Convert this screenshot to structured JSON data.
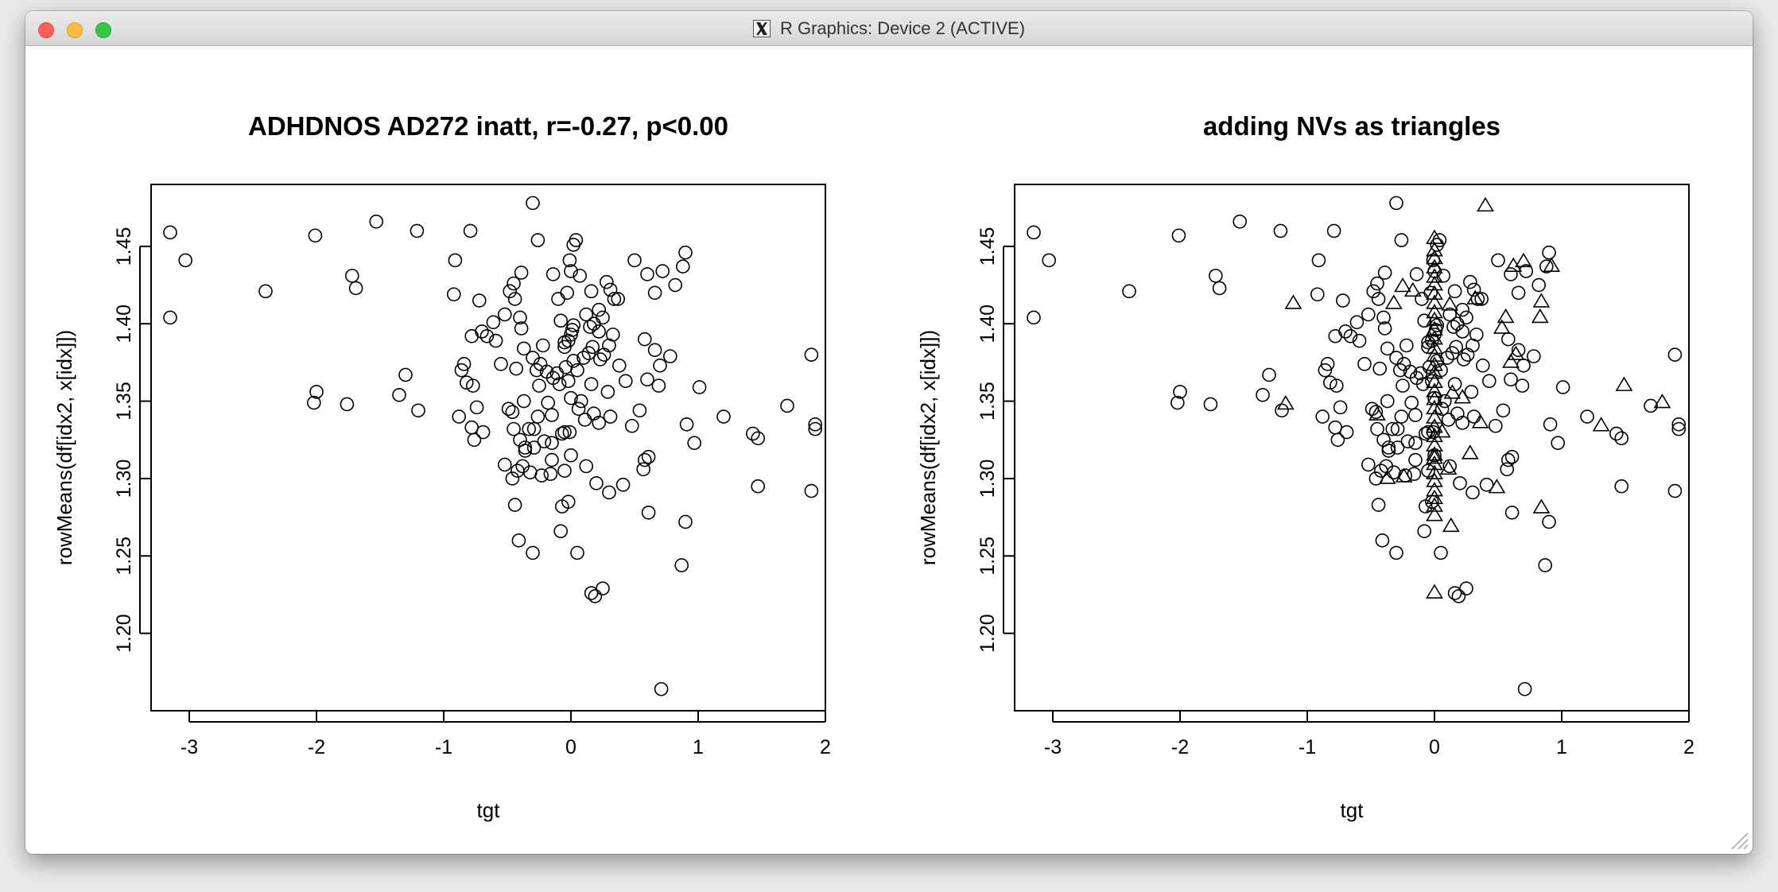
{
  "window": {
    "title": "R Graphics: Device 2 (ACTIVE)"
  },
  "chart_data": [
    {
      "type": "scatter",
      "title": "ADHDNOS AD272 inatt, r=-0.27, p<0.00",
      "xlabel": "tgt",
      "ylabel": "rowMeans(df[idx2, x[idx]])",
      "xlim": [
        -3.3,
        2.0
      ],
      "ylim": [
        1.15,
        1.49
      ],
      "xticks": [
        -3,
        -2,
        -1,
        0,
        1,
        2
      ],
      "yticks": [
        1.2,
        1.25,
        1.3,
        1.35,
        1.4,
        1.45
      ],
      "xtick_labels": [
        "-3",
        "-2",
        "-1",
        "0",
        "1",
        "2"
      ],
      "ytick_labels": [
        "1.20",
        "1.25",
        "1.30",
        "1.35",
        "1.40",
        "1.45"
      ],
      "grid": false,
      "legend": "none",
      "series": [
        {
          "marker": "circle",
          "points": [
            [
              -3.15,
              1.459
            ],
            [
              -3.03,
              1.441
            ],
            [
              -3.15,
              1.404
            ],
            [
              -2.4,
              1.421
            ],
            [
              -2.01,
              1.457
            ],
            [
              -1.72,
              1.431
            ],
            [
              -1.69,
              1.423
            ],
            [
              -1.53,
              1.466
            ],
            [
              -1.21,
              1.46
            ],
            [
              -1.3,
              1.367
            ],
            [
              -1.35,
              1.354
            ],
            [
              -1.2,
              1.344
            ],
            [
              -2.02,
              1.349
            ],
            [
              -2.0,
              1.356
            ],
            [
              -1.76,
              1.348
            ],
            [
              -0.79,
              1.46
            ],
            [
              -0.92,
              1.419
            ],
            [
              -0.91,
              1.441
            ],
            [
              -0.72,
              1.415
            ],
            [
              -0.61,
              1.401
            ],
            [
              -0.59,
              1.389
            ],
            [
              -0.52,
              1.406
            ],
            [
              -0.48,
              1.421
            ],
            [
              -0.45,
              1.426
            ],
            [
              -0.44,
              1.416
            ],
            [
              -0.4,
              1.404
            ],
            [
              -0.39,
              1.397
            ],
            [
              -0.37,
              1.384
            ],
            [
              -0.39,
              1.433
            ],
            [
              -0.3,
              1.478
            ],
            [
              -0.26,
              1.454
            ],
            [
              -0.14,
              1.432
            ],
            [
              -0.1,
              1.416
            ],
            [
              -0.08,
              1.402
            ],
            [
              -0.05,
              1.388
            ],
            [
              -0.03,
              1.42
            ],
            [
              -0.01,
              1.441
            ],
            [
              0.0,
              1.434
            ],
            [
              0.02,
              1.451
            ],
            [
              0.04,
              1.454
            ],
            [
              0.01,
              1.396
            ],
            [
              0.02,
              1.376
            ],
            [
              0.07,
              1.431
            ],
            [
              0.12,
              1.406
            ],
            [
              0.16,
              1.421
            ],
            [
              0.18,
              1.4
            ],
            [
              0.22,
              1.409
            ],
            [
              0.25,
              1.404
            ],
            [
              0.28,
              1.427
            ],
            [
              0.31,
              1.422
            ],
            [
              0.34,
              1.416
            ],
            [
              0.37,
              1.416
            ],
            [
              0.5,
              1.441
            ],
            [
              0.6,
              1.432
            ],
            [
              0.66,
              1.42
            ],
            [
              0.72,
              1.434
            ],
            [
              0.82,
              1.425
            ],
            [
              0.88,
              1.437
            ],
            [
              0.9,
              1.446
            ],
            [
              0.58,
              1.39
            ],
            [
              0.66,
              1.383
            ],
            [
              0.7,
              1.373
            ],
            [
              0.78,
              1.379
            ],
            [
              0.38,
              1.373
            ],
            [
              0.43,
              1.363
            ],
            [
              0.6,
              1.364
            ],
            [
              0.69,
              1.36
            ],
            [
              1.01,
              1.359
            ],
            [
              1.2,
              1.34
            ],
            [
              1.43,
              1.329
            ],
            [
              1.47,
              1.326
            ],
            [
              1.7,
              1.347
            ],
            [
              1.89,
              1.38
            ],
            [
              1.92,
              1.335
            ],
            [
              1.92,
              1.332
            ],
            [
              1.47,
              1.295
            ],
            [
              1.89,
              1.292
            ],
            [
              0.97,
              1.323
            ],
            [
              0.91,
              1.335
            ],
            [
              0.9,
              1.272
            ],
            [
              0.87,
              1.244
            ],
            [
              0.71,
              1.164
            ],
            [
              0.61,
              1.314
            ],
            [
              0.58,
              1.312
            ],
            [
              0.57,
              1.306
            ],
            [
              0.61,
              1.278
            ],
            [
              0.48,
              1.334
            ],
            [
              0.54,
              1.344
            ],
            [
              0.41,
              1.296
            ],
            [
              0.3,
              1.291
            ],
            [
              0.31,
              1.34
            ],
            [
              0.18,
              1.342
            ],
            [
              0.16,
              1.361
            ],
            [
              0.12,
              1.308
            ],
            [
              0.11,
              1.338
            ],
            [
              0.2,
              1.297
            ],
            [
              0.25,
              1.229
            ],
            [
              0.16,
              1.226
            ],
            [
              0.19,
              1.224
            ],
            [
              0.05,
              1.252
            ],
            [
              -0.08,
              1.266
            ],
            [
              -0.07,
              1.282
            ],
            [
              -0.02,
              1.285
            ],
            [
              -0.3,
              1.252
            ],
            [
              -0.41,
              1.26
            ],
            [
              -0.44,
              1.283
            ],
            [
              -0.46,
              1.3
            ],
            [
              -0.42,
              1.305
            ],
            [
              -0.38,
              1.308
            ],
            [
              -0.32,
              1.304
            ],
            [
              -0.23,
              1.302
            ],
            [
              -0.16,
              1.303
            ],
            [
              -0.15,
              1.312
            ],
            [
              -0.05,
              1.305
            ],
            [
              -0.07,
              1.329
            ],
            [
              -0.05,
              1.33
            ],
            [
              -0.01,
              1.33
            ],
            [
              0.0,
              1.315
            ],
            [
              -0.4,
              1.325
            ],
            [
              -0.36,
              1.32
            ],
            [
              -0.33,
              1.332
            ],
            [
              -0.29,
              1.332
            ],
            [
              -0.29,
              1.32
            ],
            [
              -0.21,
              1.324
            ],
            [
              -0.15,
              1.323
            ],
            [
              -0.15,
              1.341
            ],
            [
              -0.18,
              1.349
            ],
            [
              -0.37,
              1.35
            ],
            [
              -0.49,
              1.345
            ],
            [
              -0.46,
              1.343
            ],
            [
              -0.52,
              1.309
            ],
            [
              -0.7,
              1.395
            ],
            [
              -0.66,
              1.392
            ],
            [
              -0.78,
              1.392
            ],
            [
              -0.84,
              1.374
            ],
            [
              -0.86,
              1.37
            ],
            [
              -0.82,
              1.362
            ],
            [
              -0.77,
              1.36
            ],
            [
              -0.74,
              1.346
            ],
            [
              -0.78,
              1.333
            ],
            [
              -0.76,
              1.325
            ],
            [
              -0.69,
              1.33
            ],
            [
              -0.88,
              1.34
            ],
            [
              -0.3,
              1.378
            ],
            [
              -0.24,
              1.374
            ],
            [
              -0.22,
              1.386
            ],
            [
              -0.19,
              1.369
            ],
            [
              -0.14,
              1.365
            ],
            [
              -0.09,
              1.361
            ],
            [
              -0.11,
              1.368
            ],
            [
              -0.04,
              1.372
            ],
            [
              -0.02,
              1.363
            ],
            [
              0.05,
              1.37
            ],
            [
              0.1,
              1.378
            ],
            [
              0.14,
              1.381
            ],
            [
              0.17,
              1.385
            ],
            [
              0.23,
              1.377
            ],
            [
              0.26,
              1.38
            ],
            [
              0.3,
              1.386
            ],
            [
              0.33,
              1.393
            ],
            [
              0.22,
              1.395
            ],
            [
              0.15,
              1.398
            ],
            [
              0.02,
              1.399
            ],
            [
              0.0,
              1.393
            ],
            [
              -0.02,
              1.389
            ],
            [
              -0.05,
              1.385
            ],
            [
              -0.27,
              1.37
            ],
            [
              -0.25,
              1.36
            ],
            [
              0.0,
              1.352
            ],
            [
              0.06,
              1.345
            ],
            [
              0.08,
              1.35
            ],
            [
              0.29,
              1.356
            ],
            [
              0.22,
              1.336
            ],
            [
              -0.26,
              1.34
            ],
            [
              -0.36,
              1.318
            ],
            [
              -0.45,
              1.332
            ],
            [
              -0.55,
              1.374
            ],
            [
              -0.43,
              1.371
            ]
          ]
        }
      ]
    },
    {
      "type": "scatter",
      "title": "adding NVs as triangles",
      "xlabel": "tgt",
      "ylabel": "rowMeans(df[idx2, x[idx]])",
      "xlim": [
        -3.3,
        2.0
      ],
      "ylim": [
        1.15,
        1.49
      ],
      "xticks": [
        -3,
        -2,
        -1,
        0,
        1,
        2
      ],
      "yticks": [
        1.2,
        1.25,
        1.3,
        1.35,
        1.4,
        1.45
      ],
      "xtick_labels": [
        "-3",
        "-2",
        "-1",
        "0",
        "1",
        "2"
      ],
      "ytick_labels": [
        "1.20",
        "1.25",
        "1.30",
        "1.35",
        "1.40",
        "1.45"
      ],
      "grid": false,
      "legend": "none",
      "series": [
        {
          "marker": "circle",
          "same_points_as_left_panel": true
        },
        {
          "marker": "triangle",
          "points": [
            [
              0.4,
              1.476
            ],
            [
              0.0,
              1.455
            ],
            [
              -1.11,
              1.413
            ],
            [
              -0.32,
              1.413
            ],
            [
              -0.25,
              1.424
            ],
            [
              -0.17,
              1.421
            ],
            [
              0.12,
              1.412
            ],
            [
              0.32,
              1.416
            ],
            [
              0.56,
              1.404
            ],
            [
              0.62,
              1.437
            ],
            [
              0.7,
              1.44
            ],
            [
              0.84,
              1.414
            ],
            [
              0.83,
              1.404
            ],
            [
              0.53,
              1.397
            ],
            [
              0.64,
              1.38
            ],
            [
              0.6,
              1.375
            ],
            [
              0.92,
              1.437
            ],
            [
              -1.17,
              1.348
            ],
            [
              -0.45,
              1.341
            ],
            [
              -0.37,
              1.3
            ],
            [
              -0.24,
              1.301
            ],
            [
              0.06,
              1.33
            ],
            [
              0.0,
              1.313
            ],
            [
              0.28,
              1.316
            ],
            [
              0.36,
              1.336
            ],
            [
              0.49,
              1.294
            ],
            [
              0.84,
              1.281
            ],
            [
              1.31,
              1.334
            ],
            [
              1.49,
              1.36
            ],
            [
              1.79,
              1.349
            ],
            [
              0.0,
              1.226
            ],
            [
              0.13,
              1.269
            ],
            [
              0.14,
              1.355
            ],
            [
              0.22,
              1.352
            ],
            [
              0.11,
              1.306
            ],
            [
              0.0,
              1.276
            ],
            [
              0.0,
              1.282
            ],
            [
              0.0,
              1.287
            ],
            [
              0.0,
              1.292
            ],
            [
              0.0,
              1.298
            ],
            [
              0.0,
              1.303
            ],
            [
              0.0,
              1.309
            ],
            [
              0.0,
              1.315
            ],
            [
              0.0,
              1.321
            ],
            [
              0.0,
              1.327
            ],
            [
              0.0,
              1.333
            ],
            [
              0.0,
              1.339
            ],
            [
              0.0,
              1.345
            ],
            [
              0.0,
              1.351
            ],
            [
              0.0,
              1.356
            ],
            [
              0.0,
              1.362
            ],
            [
              0.0,
              1.368
            ],
            [
              0.0,
              1.373
            ],
            [
              0.0,
              1.379
            ],
            [
              0.0,
              1.384
            ],
            [
              0.0,
              1.39
            ],
            [
              0.0,
              1.396
            ],
            [
              0.0,
              1.402
            ],
            [
              0.0,
              1.407
            ],
            [
              0.0,
              1.413
            ],
            [
              0.0,
              1.419
            ],
            [
              0.0,
              1.425
            ],
            [
              0.0,
              1.43
            ],
            [
              0.0,
              1.436
            ],
            [
              0.0,
              1.442
            ],
            [
              0.0,
              1.447
            ]
          ]
        }
      ]
    }
  ]
}
